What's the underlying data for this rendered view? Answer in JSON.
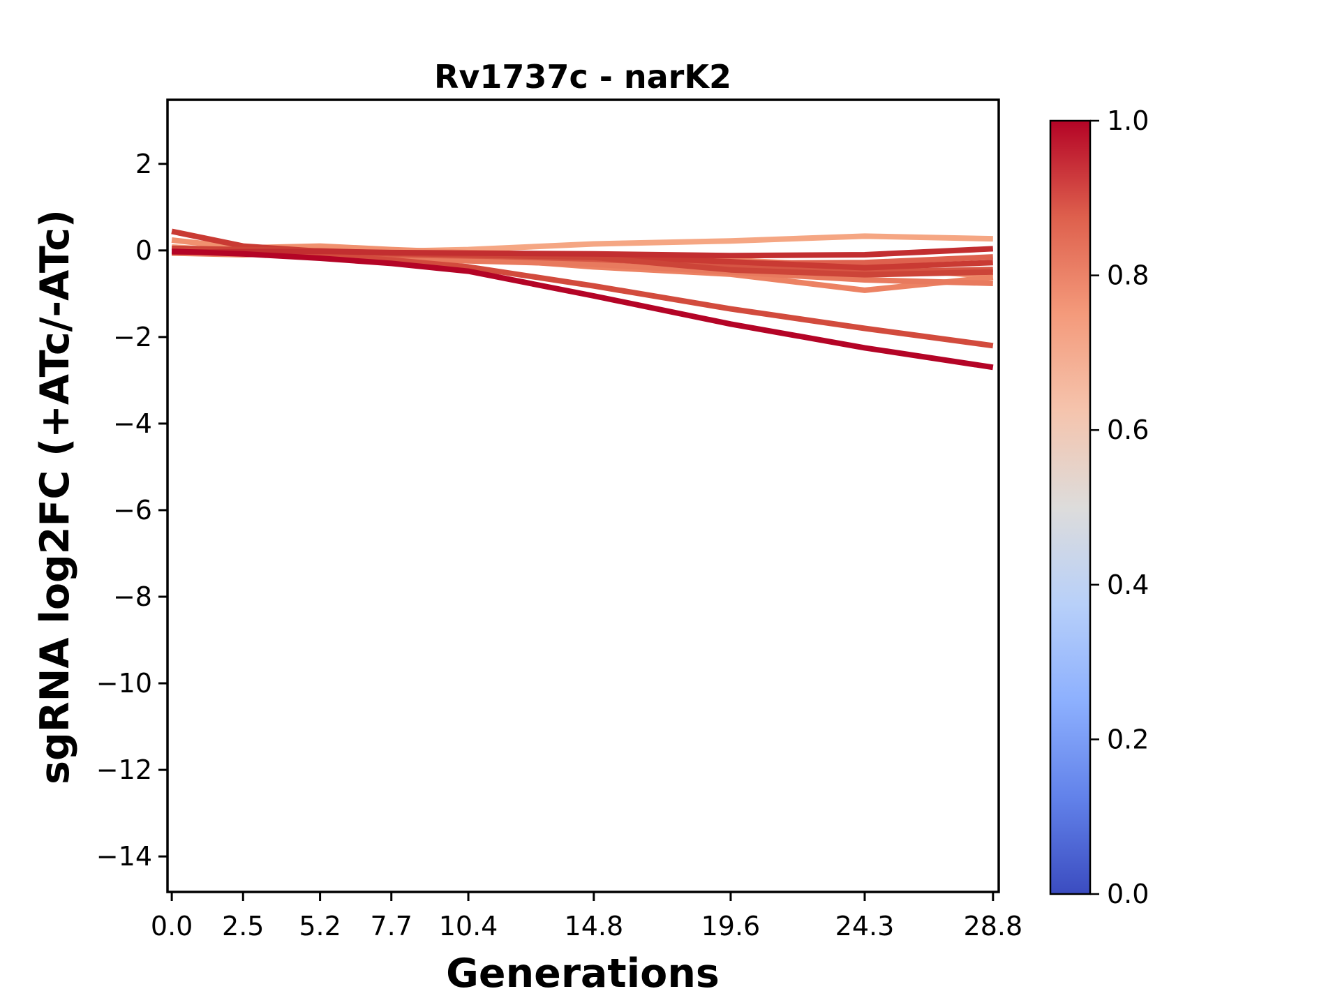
{
  "chart_data": {
    "type": "line",
    "title": "Rv1737c - narK2",
    "xlabel": "Generations",
    "ylabel": "sgRNA log2FC (+ATc/-ATc)",
    "grid": false,
    "legend": "none (colorbar encodes line color value)",
    "x": [
      0.0,
      2.5,
      5.2,
      7.7,
      10.4,
      14.8,
      19.6,
      24.3,
      28.8
    ],
    "x_tick_labels": [
      "0.0",
      "2.5",
      "5.2",
      "7.7",
      "10.4",
      "14.8",
      "19.6",
      "24.3",
      "28.8"
    ],
    "xlim": [
      -0.15,
      29.0
    ],
    "y_ticks": [
      2,
      0,
      -2,
      -4,
      -6,
      -8,
      -10,
      -12,
      -14
    ],
    "ylim": [
      -14.82,
      3.48
    ],
    "series": [
      {
        "color": "#f5a683",
        "values": [
          0.08,
          -0.02,
          0.03,
          -0.02,
          0.02,
          0.15,
          0.22,
          0.33,
          0.27
        ]
      },
      {
        "color": "#f0916f",
        "values": [
          0.24,
          0.06,
          0.1,
          0.02,
          -0.05,
          -0.12,
          -0.22,
          -0.38,
          -0.6
        ]
      },
      {
        "color": "#ec8263",
        "values": [
          -0.06,
          -0.1,
          -0.04,
          -0.1,
          -0.16,
          -0.38,
          -0.55,
          -0.92,
          -0.62
        ]
      },
      {
        "color": "#e87a5e",
        "values": [
          0.0,
          -0.08,
          -0.12,
          -0.18,
          -0.24,
          -0.32,
          -0.5,
          -0.68,
          -0.76
        ]
      },
      {
        "color": "#de614e",
        "values": [
          -0.03,
          -0.06,
          -0.08,
          -0.1,
          -0.13,
          -0.16,
          -0.3,
          -0.28,
          -0.15
        ]
      },
      {
        "color": "#d65544",
        "values": [
          0.02,
          -0.01,
          -0.05,
          -0.08,
          -0.12,
          -0.2,
          -0.36,
          -0.5,
          -0.44
        ]
      },
      {
        "color": "#c93a33",
        "values": [
          0.44,
          0.1,
          -0.02,
          -0.06,
          -0.09,
          -0.13,
          -0.26,
          -0.4,
          -0.28
        ]
      },
      {
        "color": "#cc4438",
        "values": [
          0.05,
          0.02,
          -0.01,
          -0.06,
          -0.1,
          -0.16,
          -0.45,
          -0.56,
          -0.5
        ]
      },
      {
        "color": "#d24b3d",
        "values": [
          0.0,
          -0.05,
          -0.12,
          -0.22,
          -0.38,
          -0.82,
          -1.35,
          -1.8,
          -2.2
        ]
      },
      {
        "color": "#c22e30",
        "values": [
          -0.04,
          -0.03,
          -0.02,
          -0.05,
          -0.06,
          -0.08,
          -0.12,
          -0.1,
          0.04
        ]
      },
      {
        "color": "#b40426",
        "values": [
          -0.02,
          -0.08,
          -0.18,
          -0.3,
          -0.48,
          -1.05,
          -1.7,
          -2.25,
          -2.7
        ]
      }
    ],
    "colorbar": {
      "vmin": 0.0,
      "vmax": 1.0,
      "tick_labels": [
        "1.0",
        "0.8",
        "0.6",
        "0.4",
        "0.2",
        "0.0"
      ],
      "tick_values": [
        1.0,
        0.8,
        0.6,
        0.4,
        0.2,
        0.0
      ],
      "colormap_name": "coolwarm",
      "cmap_stops": [
        {
          "pos": 0.0,
          "color": "#3b4cc0"
        },
        {
          "pos": 0.125,
          "color": "#6282ea"
        },
        {
          "pos": 0.25,
          "color": "#8db0fe"
        },
        {
          "pos": 0.375,
          "color": "#b8d0f9"
        },
        {
          "pos": 0.5,
          "color": "#dddcdb"
        },
        {
          "pos": 0.625,
          "color": "#f5c4ad"
        },
        {
          "pos": 0.75,
          "color": "#f49a7b"
        },
        {
          "pos": 0.875,
          "color": "#de604d"
        },
        {
          "pos": 1.0,
          "color": "#b40426"
        }
      ]
    },
    "style": {
      "line_width": 8,
      "spine_color": "#000000",
      "background": "#ffffff"
    }
  }
}
